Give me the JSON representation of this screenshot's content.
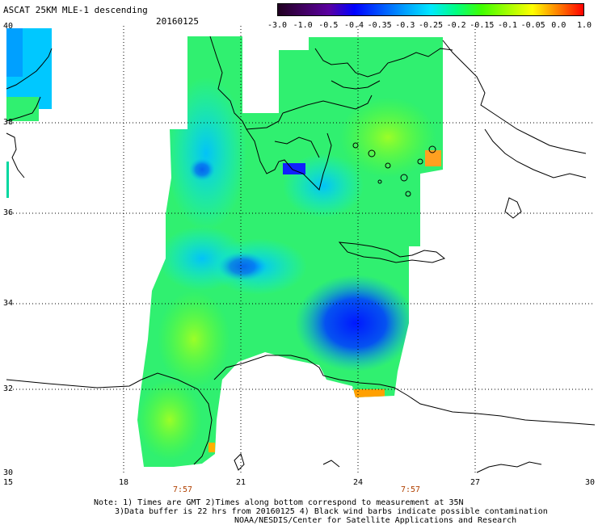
{
  "title": "ASCAT 25KM MLE-1 descending",
  "date": "20160125",
  "colorbar": {
    "tick_labels": [
      "-3.0",
      "-1.0",
      "-0.5",
      "-0.4",
      "-0.35",
      "-0.3",
      "-0.25",
      "-0.2",
      "-0.15",
      "-0.1",
      "-0.05",
      "0.0",
      "1.0"
    ],
    "colors": [
      "#200020",
      "#400060",
      "#5a00a0",
      "#0000ff",
      "#0050ff",
      "#00a0ff",
      "#00e8ff",
      "#00ff80",
      "#40ff00",
      "#a0ff00",
      "#ffff00",
      "#ff8000",
      "#ff0000"
    ]
  },
  "latitude_labels": [
    "40",
    "38",
    "36",
    "34",
    "32",
    "30"
  ],
  "longitude_labels": [
    "15",
    "18",
    "21",
    "24",
    "27",
    "30"
  ],
  "time_labels": [
    "7:57",
    "7:57"
  ],
  "notes": {
    "line1": "Note: 1) Times are GMT 2)Times along bottom correspond to measurement at 35N",
    "line2": "3)Data buffer is 22 hrs from 20160125 4) Black wind barbs indicate possible contamination",
    "line3": "NOAA/NESDIS/Center for Satellite Applications and Research"
  }
}
